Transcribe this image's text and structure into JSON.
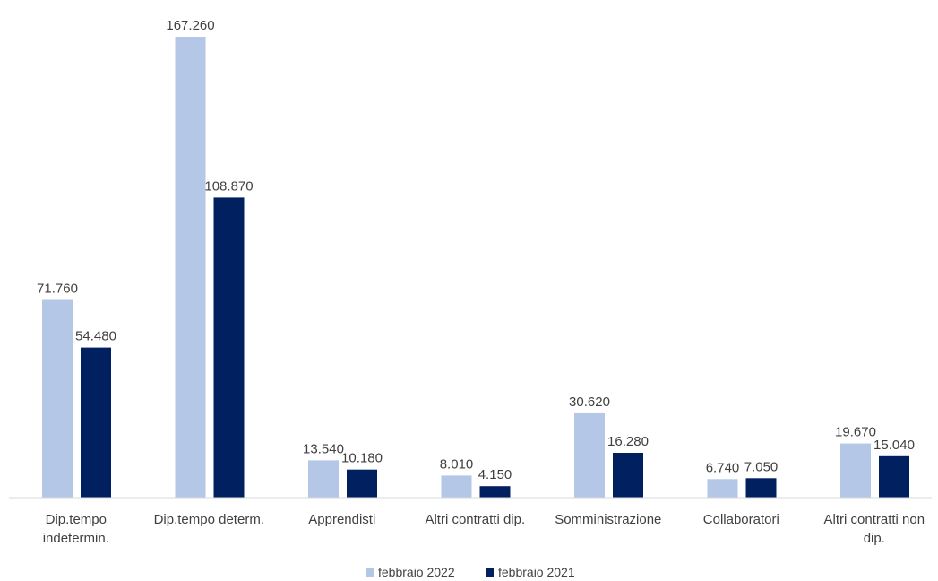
{
  "chart_data": {
    "type": "bar",
    "categories": [
      "Dip.tempo indetermin.",
      "Dip.tempo determ.",
      "Apprendisti",
      "Altri contratti dip.",
      "Somministrazione",
      "Collaboratori",
      "Altri contratti non dip."
    ],
    "category_lines": [
      [
        "Dip.tempo",
        "indetermin."
      ],
      [
        "Dip.tempo determ."
      ],
      [
        "Apprendisti"
      ],
      [
        "Altri contratti dip."
      ],
      [
        "Somministrazione"
      ],
      [
        "Collaboratori"
      ],
      [
        "Altri contratti non",
        "dip."
      ]
    ],
    "series": [
      {
        "name": "febbraio 2022",
        "color": "#b4c7e7",
        "values": [
          71760,
          167260,
          13540,
          8010,
          30620,
          6740,
          19670
        ],
        "labels": [
          "71.760",
          "167.260",
          "13.540",
          "8.010",
          "30.620",
          "6.740",
          "19.670"
        ]
      },
      {
        "name": "febbraio 2021",
        "color": "#002060",
        "values": [
          54480,
          108870,
          10180,
          4150,
          16280,
          7050,
          15040
        ],
        "labels": [
          "54.480",
          "108.870",
          "10.180",
          "4.150",
          "16.280",
          "7.050",
          "15.040"
        ]
      }
    ],
    "title": "",
    "xlabel": "",
    "ylabel": "",
    "ylim": [
      0,
      167260
    ],
    "grid": false,
    "legend_position": "bottom"
  }
}
